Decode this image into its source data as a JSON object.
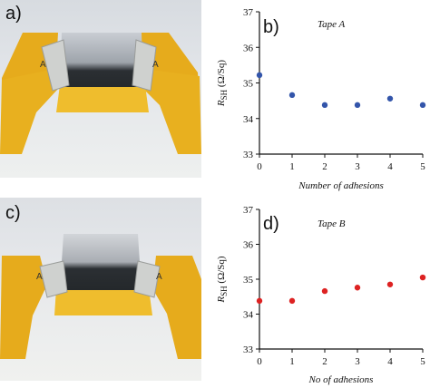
{
  "panels": {
    "a_label": "a)",
    "b_label": "b)",
    "c_label": "c)",
    "d_label": "d)",
    "photo_marker_letter": "A"
  },
  "colors": {
    "tape": "#e8ad1a",
    "tape_dark": "#b98512",
    "film": "#2b2f33",
    "clip": "#c9cbc9",
    "backdrop_top": "#dfe2e6",
    "backdrop_bottom": "#eceeee",
    "series_b": "#3355aa",
    "series_d": "#dd2222",
    "axis": "#111111"
  },
  "chart_data": [
    {
      "id": "b",
      "type": "scatter",
      "annotation": "Tape A",
      "xlabel": "Number of adhesions",
      "ylabel": "R_SH (Ω/Sq)",
      "ylabel_main": "R",
      "ylabel_sub": "SH",
      "ylabel_unit": " (Ω/Sq)",
      "xlim": [
        0,
        5
      ],
      "ylim": [
        33,
        37
      ],
      "xticks": [
        0,
        1,
        2,
        3,
        4,
        5
      ],
      "yticks": [
        33,
        34,
        35,
        36,
        37
      ],
      "series": [
        {
          "x": [
            0,
            1,
            2,
            3,
            4,
            5
          ],
          "y": [
            35.22,
            34.66,
            34.38,
            34.38,
            34.56,
            34.38
          ],
          "color": "#3355aa"
        }
      ]
    },
    {
      "id": "d",
      "type": "scatter",
      "annotation": "Tape B",
      "xlabel": "No of adhesions",
      "ylabel": "R_SH (Ω/Sq)",
      "ylabel_main": "R",
      "ylabel_sub": "SH",
      "ylabel_unit": " (Ω/Sq)",
      "xlim": [
        0,
        5
      ],
      "ylim": [
        33,
        37
      ],
      "xticks": [
        0,
        1,
        2,
        3,
        4,
        5
      ],
      "yticks": [
        33,
        34,
        35,
        36,
        37
      ],
      "series": [
        {
          "x": [
            0,
            1,
            2,
            3,
            4,
            5
          ],
          "y": [
            34.38,
            34.38,
            34.66,
            34.76,
            34.85,
            35.05
          ],
          "color": "#dd2222"
        }
      ]
    }
  ]
}
